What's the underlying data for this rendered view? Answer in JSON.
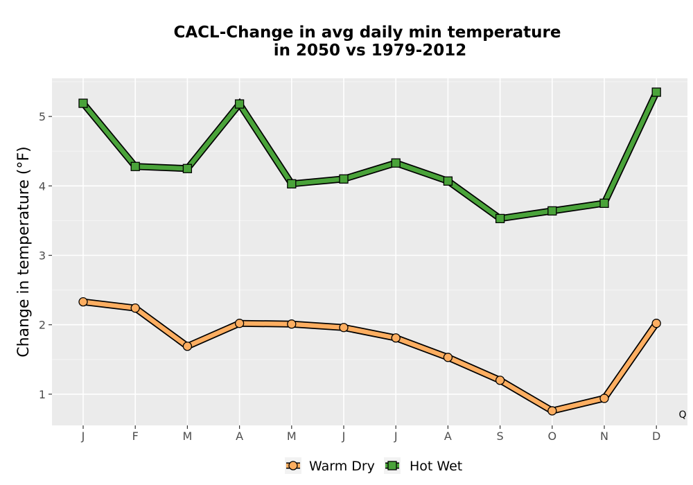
{
  "chart_data": {
    "type": "line",
    "title_lines": [
      "CACL-Change in avg daily min temperature",
      "in 2050 vs 1979-2012"
    ],
    "xlabel": "",
    "ylabel": "Change in temperature (°F)",
    "categories": [
      "J",
      "F",
      "M",
      "A",
      "M",
      "J",
      "J",
      "A",
      "S",
      "O",
      "N",
      "D"
    ],
    "ylim": [
      0.55,
      5.55
    ],
    "yticks": [
      1,
      2,
      3,
      4,
      5
    ],
    "grid": true,
    "legend_position": "bottom",
    "corner_note": "Q",
    "series": [
      {
        "name": "Warm Dry",
        "marker": "circle",
        "color": "#fdae61",
        "values": [
          2.33,
          2.24,
          1.69,
          2.02,
          2.01,
          1.96,
          1.81,
          1.53,
          1.2,
          0.76,
          0.94,
          2.02
        ]
      },
      {
        "name": "Hot Wet",
        "marker": "square",
        "color": "#4aa33a",
        "values": [
          5.19,
          4.28,
          4.25,
          5.18,
          4.03,
          4.1,
          4.33,
          4.07,
          3.53,
          3.64,
          3.75,
          5.35
        ]
      }
    ]
  }
}
